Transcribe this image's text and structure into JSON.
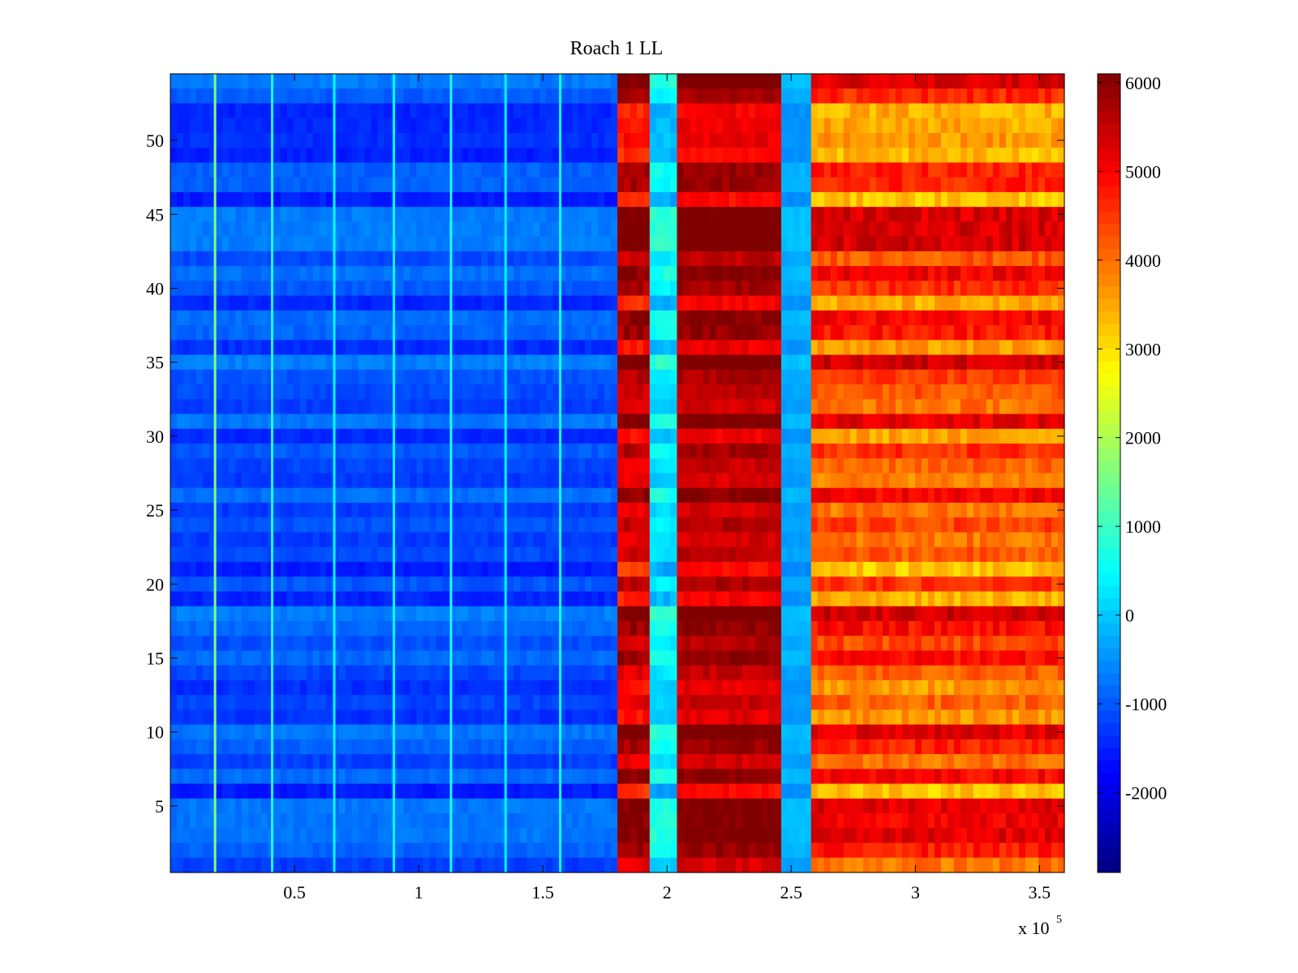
{
  "chart_data": {
    "type": "heatmap",
    "title": "Roach 1 LL",
    "xlabel": "",
    "ylabel": "",
    "x_multiplier_label": "x 10",
    "x_multiplier_exponent": "5",
    "xlim": [
      0,
      3.6
    ],
    "ylim": [
      0.5,
      54.5
    ],
    "x_ticks": [
      0.5,
      1,
      1.5,
      2,
      2.5,
      3,
      3.5
    ],
    "x_tick_labels": [
      "0.5",
      "1",
      "1.5",
      "2",
      "2.5",
      "3",
      "3.5"
    ],
    "y_ticks": [
      5,
      10,
      15,
      20,
      25,
      30,
      35,
      40,
      45,
      50
    ],
    "y_tick_labels": [
      "5",
      "10",
      "15",
      "20",
      "25",
      "30",
      "35",
      "40",
      "45",
      "50"
    ],
    "rows": 54,
    "colormap": "jet",
    "colorbar": {
      "clim": [
        -2900,
        6100
      ],
      "ticks": [
        -2000,
        -1000,
        0,
        1000,
        2000,
        3000,
        4000,
        5000,
        6000
      ],
      "tick_labels": [
        "-2000",
        "-1000",
        "0",
        "1000",
        "2000",
        "3000",
        "4000",
        "5000",
        "6000"
      ]
    },
    "segments": [
      {
        "x_start": 0.0,
        "x_end": 1.8,
        "level": -1100,
        "row_variation": 450
      },
      {
        "x_start": 1.8,
        "x_end": 1.93,
        "level": 5400,
        "row_variation": 900
      },
      {
        "x_start": 1.93,
        "x_end": 2.04,
        "level": 300,
        "row_variation": 600
      },
      {
        "x_start": 2.04,
        "x_end": 2.46,
        "level": 5600,
        "row_variation": 700
      },
      {
        "x_start": 2.46,
        "x_end": 2.58,
        "level": -300,
        "row_variation": 250
      },
      {
        "x_start": 2.58,
        "x_end": 3.6,
        "level": 4300,
        "row_variation": 1100
      }
    ],
    "vertical_streaks": [
      {
        "x": 0.18,
        "value": 1600
      },
      {
        "x": 0.41,
        "value": 700
      },
      {
        "x": 0.66,
        "value": 500
      },
      {
        "x": 0.9,
        "value": 500
      },
      {
        "x": 1.13,
        "value": 700
      },
      {
        "x": 1.35,
        "value": 400
      },
      {
        "x": 1.57,
        "value": 600
      }
    ]
  }
}
